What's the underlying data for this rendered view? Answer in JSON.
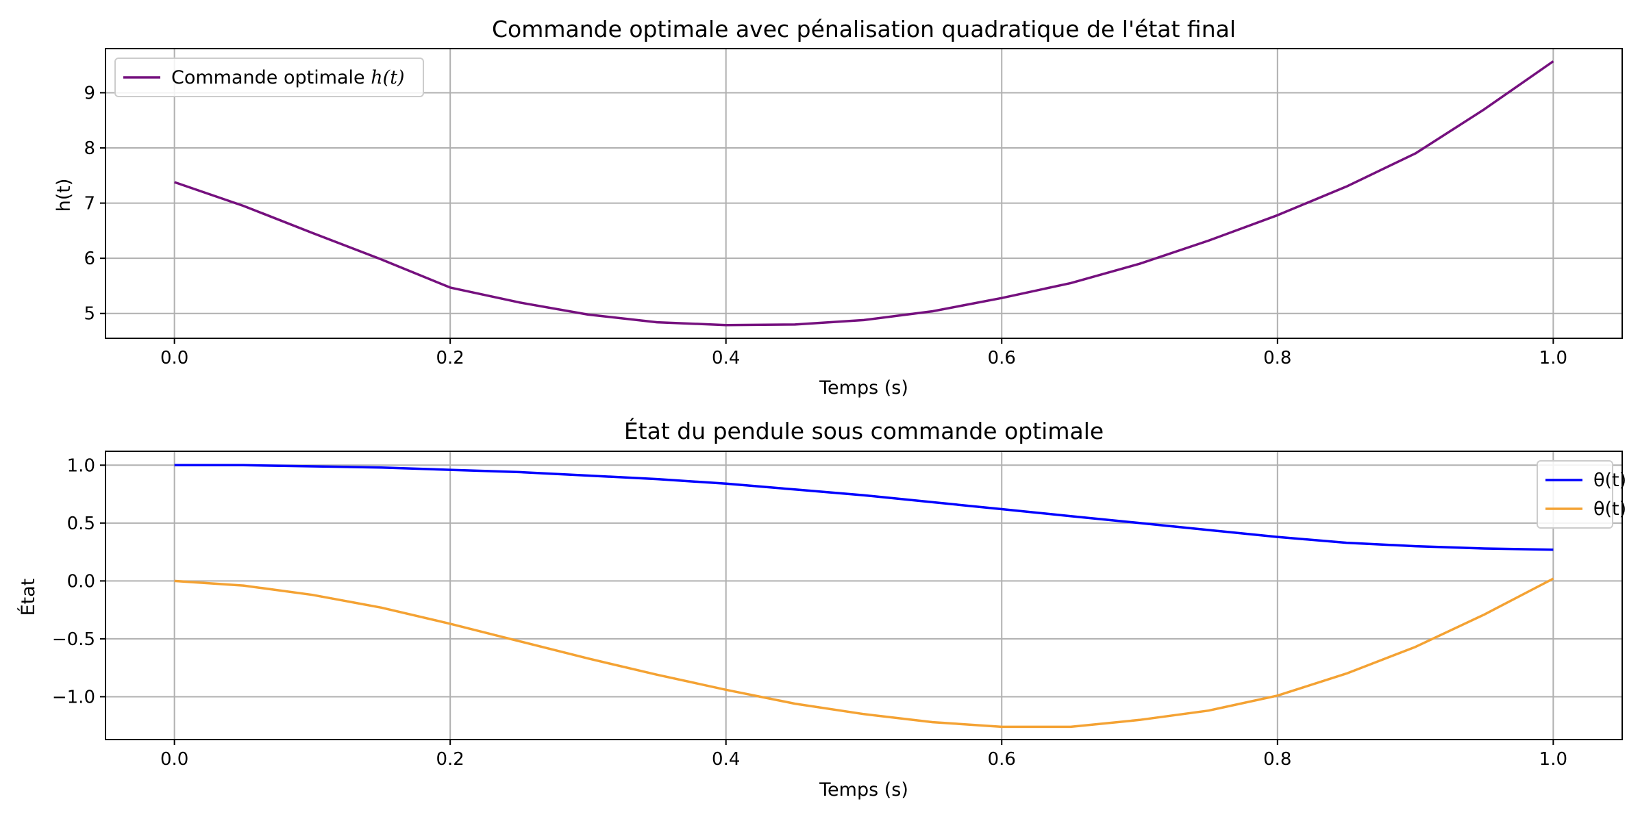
{
  "chart_data": [
    {
      "type": "line",
      "title": "Commande optimale avec pénalisation quadratique de l'état final",
      "xlabel": "Temps (s)",
      "ylabel": "h(t)",
      "xlim": [
        -0.05,
        1.05
      ],
      "ylim": [
        4.55,
        9.8
      ],
      "xticks": [
        0.0,
        0.2,
        0.4,
        0.6,
        0.8,
        1.0
      ],
      "xtick_labels": [
        "0.0",
        "0.2",
        "0.4",
        "0.6",
        "0.8",
        "1.0"
      ],
      "yticks": [
        5,
        6,
        7,
        8,
        9
      ],
      "ytick_labels": [
        "5",
        "6",
        "7",
        "8",
        "9"
      ],
      "grid": true,
      "legend_position": "upper left",
      "series": [
        {
          "name": "Commande optimale h(t)",
          "legend_prefix": "Commande optimale ",
          "legend_math": "h(t)",
          "color": "#75107e",
          "x": [
            0.0,
            0.05,
            0.1,
            0.15,
            0.2,
            0.25,
            0.3,
            0.35,
            0.4,
            0.45,
            0.5,
            0.55,
            0.6,
            0.65,
            0.7,
            0.75,
            0.8,
            0.85,
            0.9,
            0.95,
            1.0
          ],
          "y": [
            7.38,
            6.95,
            6.46,
            5.98,
            5.47,
            5.2,
            4.98,
            4.84,
            4.79,
            4.8,
            4.88,
            5.04,
            5.28,
            5.55,
            5.9,
            6.32,
            6.78,
            7.3,
            7.9,
            8.7,
            9.57
          ]
        }
      ]
    },
    {
      "type": "line",
      "title": "État du pendule sous commande optimale",
      "xlabel": "Temps (s)",
      "ylabel": "État",
      "xlim": [
        -0.05,
        1.05
      ],
      "ylim": [
        -1.37,
        1.12
      ],
      "xticks": [
        0.0,
        0.2,
        0.4,
        0.6,
        0.8,
        1.0
      ],
      "xtick_labels": [
        "0.0",
        "0.2",
        "0.4",
        "0.6",
        "0.8",
        "1.0"
      ],
      "yticks": [
        1.0,
        0.5,
        0.0,
        -0.5,
        -1.0
      ],
      "ytick_labels": [
        "1.0",
        "0.5",
        "0.0",
        "−0.5",
        "−1.0"
      ],
      "grid": true,
      "legend_position": "upper right",
      "series": [
        {
          "name": "θ(t)",
          "color": "#0000ff",
          "x": [
            0.0,
            0.05,
            0.1,
            0.15,
            0.2,
            0.25,
            0.3,
            0.35,
            0.4,
            0.45,
            0.5,
            0.55,
            0.6,
            0.65,
            0.7,
            0.75,
            0.8,
            0.85,
            0.9,
            0.95,
            1.0
          ],
          "y": [
            1.0,
            1.0,
            0.99,
            0.98,
            0.96,
            0.94,
            0.91,
            0.88,
            0.84,
            0.79,
            0.74,
            0.68,
            0.62,
            0.56,
            0.5,
            0.44,
            0.38,
            0.33,
            0.3,
            0.28,
            0.27
          ]
        },
        {
          "name": "θ(t)",
          "color": "#f4a233",
          "x": [
            0.0,
            0.05,
            0.1,
            0.15,
            0.2,
            0.25,
            0.3,
            0.35,
            0.4,
            0.45,
            0.5,
            0.55,
            0.6,
            0.65,
            0.7,
            0.75,
            0.8,
            0.85,
            0.9,
            0.95,
            1.0
          ],
          "y": [
            0.0,
            -0.04,
            -0.12,
            -0.23,
            -0.37,
            -0.52,
            -0.67,
            -0.81,
            -0.94,
            -1.06,
            -1.15,
            -1.22,
            -1.26,
            -1.26,
            -1.2,
            -1.12,
            -0.99,
            -0.8,
            -0.57,
            -0.29,
            0.02
          ]
        }
      ]
    }
  ]
}
